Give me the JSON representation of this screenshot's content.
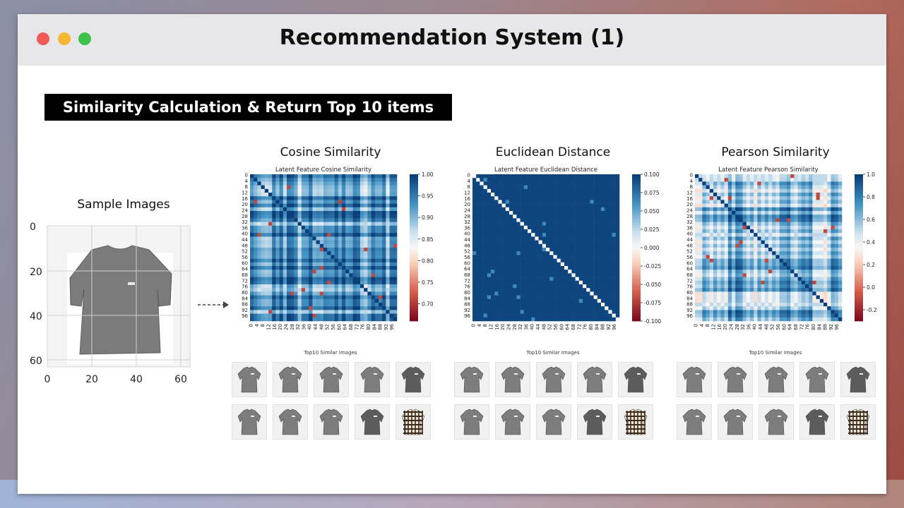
{
  "window": {
    "title": "Recommendation System (1)",
    "traffic_lights": [
      "close",
      "minimize",
      "maximize"
    ]
  },
  "section_badge": "Similarity Calculation & Return Top 10 items",
  "sample": {
    "title": "Sample Images",
    "y_ticks": [
      "0",
      "20",
      "40",
      "60"
    ],
    "x_ticks": [
      "0",
      "20",
      "40",
      "60"
    ]
  },
  "panels": [
    {
      "title": "Cosine Similarity",
      "chart_title": "Latent Feature Cosine Similarity",
      "colorbar_ticks": [
        "1.00",
        "0.95",
        "0.90",
        "0.85",
        "0.80",
        "0.75",
        "0.70"
      ],
      "colorbar_range": [
        0.66,
        1.0
      ],
      "style": "cosine",
      "top10_title": "Top10 Similar Images",
      "items": [
        "shirt",
        "shirt",
        "shirt",
        "shirt",
        "shirt-dark",
        "shirt",
        "shirt",
        "shirt",
        "shirt-dark",
        "plaid-shirt"
      ]
    },
    {
      "title": "Euclidean Distance",
      "chart_title": "Latent Feature Euclidean Distance",
      "colorbar_ticks": [
        "0.100",
        "0.075",
        "0.050",
        "0.025",
        "0.000",
        "-0.025",
        "-0.050",
        "-0.075",
        "-0.100"
      ],
      "colorbar_range": [
        -0.1,
        0.1
      ],
      "style": "euclid",
      "top10_title": "Top10 Similar Images",
      "items": [
        "shirt",
        "shirt",
        "shirt",
        "shirt",
        "shirt-dark",
        "shirt",
        "shirt",
        "shirt",
        "shirt-dark",
        "plaid-shirt"
      ]
    },
    {
      "title": "Pearson Similarity",
      "chart_title": "Latent Feature Pearson Similarity",
      "colorbar_ticks": [
        "1.0",
        "0.8",
        "0.6",
        "0.4",
        "0.2",
        "0.0",
        "-0.2"
      ],
      "colorbar_range": [
        -0.3,
        1.0
      ],
      "style": "pearson",
      "top10_title": "Top10 Similar Images",
      "items": [
        "shirt",
        "shirt",
        "shirt",
        "shirt",
        "shirt-dark",
        "shirt",
        "shirt",
        "shirt",
        "shirt-dark",
        "plaid-shirt"
      ]
    }
  ],
  "matrix_ticks": [
    "0",
    "4",
    "8",
    "12",
    "16",
    "20",
    "24",
    "28",
    "32",
    "36",
    "40",
    "44",
    "48",
    "52",
    "56",
    "60",
    "64",
    "68",
    "72",
    "76",
    "80",
    "84",
    "88",
    "92",
    "96"
  ],
  "colors": {
    "heat_high": "#0b3f7a",
    "heat_mid": "#f7f7f7",
    "heat_low": "#7b0a1f",
    "badge_bg": "#000000"
  }
}
